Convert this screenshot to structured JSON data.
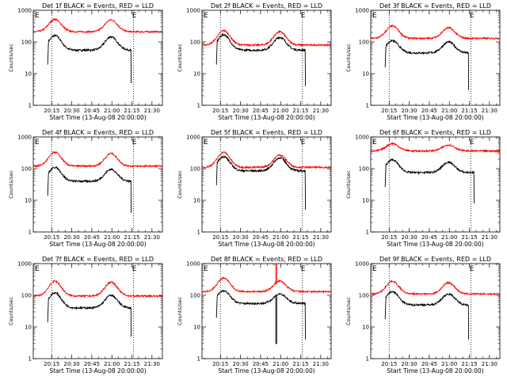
{
  "chart_data": [
    {
      "type": "line",
      "title": "Det 1f BLACK = Events, RED = LLD",
      "xlabel": "Start Time (13-Aug-08 20:00:00)",
      "ylabel": "Counts/sec",
      "yscale": "log",
      "ylim": [
        1,
        1000
      ],
      "xlim": [
        20.02,
        21.63
      ],
      "xticks": [
        "20:15",
        "20:30",
        "20:45",
        "21:00",
        "21:15",
        "21:30"
      ],
      "yticks": [
        "1",
        "10",
        "100",
        "1000"
      ],
      "markers": [
        "E",
        "E"
      ],
      "event_lines": [
        20.25,
        21.27
      ],
      "series": [
        {
          "color": "#000000",
          "start": 20.2,
          "end": 21.24,
          "base": 55,
          "peaks": [
            [
              20.29,
              160
            ],
            [
              20.99,
              145
            ]
          ],
          "end_drop": 5
        },
        {
          "color": "#ff0000",
          "start": 20.02,
          "end": 21.63,
          "base": 210,
          "peaks": [
            [
              20.29,
              520
            ],
            [
              20.99,
              500
            ]
          ],
          "end_drop": null
        }
      ]
    },
    {
      "type": "line",
      "title": "Det 2f BLACK = Events, RED = LLD",
      "xlabel": "Start Time (13-Aug-08 20:00:00)",
      "ylabel": "Counts/sec",
      "yscale": "log",
      "ylim": [
        1,
        1000
      ],
      "xlim": [
        20.02,
        21.63
      ],
      "xticks": [
        "20:15",
        "20:30",
        "20:45",
        "21:00",
        "21:15",
        "21:30"
      ],
      "yticks": [
        "1",
        "10",
        "100",
        "1000"
      ],
      "markers": [
        "E",
        "E"
      ],
      "event_lines": [
        20.25,
        21.27
      ],
      "series": [
        {
          "color": "#000000",
          "start": 20.2,
          "end": 21.31,
          "base": 55,
          "peaks": [
            [
              20.29,
              170
            ],
            [
              20.99,
              140
            ]
          ],
          "end_drop": 4
        },
        {
          "color": "#ff0000",
          "start": 20.02,
          "end": 21.63,
          "base": 80,
          "peaks": [
            [
              20.29,
              230
            ],
            [
              20.99,
              210
            ]
          ],
          "end_drop": null
        }
      ]
    },
    {
      "type": "line",
      "title": "Det 3f BLACK = Events, RED = LLD",
      "xlabel": "Start Time (13-Aug-08 20:00:00)",
      "ylabel": "Counts/sec",
      "yscale": "log",
      "ylim": [
        1,
        1000
      ],
      "xlim": [
        20.02,
        21.63
      ],
      "xticks": [
        "20:15",
        "20:30",
        "20:45",
        "21:00",
        "21:15",
        "21:30"
      ],
      "yticks": [
        "1",
        "10",
        "100",
        "1000"
      ],
      "markers": [
        "E",
        "E"
      ],
      "event_lines": [
        20.25,
        21.27
      ],
      "series": [
        {
          "color": "#000000",
          "start": 20.2,
          "end": 21.24,
          "base": 45,
          "peaks": [
            [
              20.29,
              110
            ],
            [
              20.99,
              100
            ]
          ],
          "end_drop": 3
        },
        {
          "color": "#ff0000",
          "start": 20.02,
          "end": 21.63,
          "base": 130,
          "peaks": [
            [
              20.29,
              320
            ],
            [
              20.99,
              280
            ]
          ],
          "end_drop": null
        }
      ]
    },
    {
      "type": "line",
      "title": "Det 4f BLACK = Events, RED = LLD",
      "xlabel": "Start Time (13-Aug-08 20:00:00)",
      "ylabel": "Counts/sec",
      "yscale": "log",
      "ylim": [
        1,
        1000
      ],
      "xlim": [
        20.02,
        21.63
      ],
      "xticks": [
        "20:15",
        "20:30",
        "20:45",
        "21:00",
        "21:15",
        "21:30"
      ],
      "yticks": [
        "1",
        "10",
        "100",
        "1000"
      ],
      "markers": [
        "E",
        "E"
      ],
      "event_lines": [
        20.25,
        21.27
      ],
      "series": [
        {
          "color": "#000000",
          "start": 20.2,
          "end": 21.24,
          "base": 40,
          "peaks": [
            [
              20.29,
              110
            ],
            [
              20.99,
              95
            ]
          ],
          "end_drop": 4
        },
        {
          "color": "#ff0000",
          "start": 20.02,
          "end": 21.63,
          "base": 120,
          "peaks": [
            [
              20.29,
              330
            ],
            [
              20.99,
              300
            ]
          ],
          "end_drop": null
        }
      ]
    },
    {
      "type": "line",
      "title": "Det 5f BLACK = Events, RED = LLD",
      "xlabel": "Start Time (13-Aug-08 20:00:00)",
      "ylabel": "Counts/sec",
      "yscale": "log",
      "ylim": [
        1,
        1000
      ],
      "xlim": [
        20.02,
        21.63
      ],
      "xticks": [
        "20:15",
        "20:30",
        "20:45",
        "21:00",
        "21:15",
        "21:30"
      ],
      "yticks": [
        "1",
        "10",
        "100",
        "1000"
      ],
      "markers": [
        "E",
        "E"
      ],
      "event_lines": [
        20.25,
        21.27
      ],
      "series": [
        {
          "color": "#000000",
          "start": 20.2,
          "end": 21.31,
          "base": 85,
          "peaks": [
            [
              20.29,
              240
            ],
            [
              20.99,
              220
            ]
          ],
          "end_drop": 5
        },
        {
          "color": "#ff0000",
          "start": 20.02,
          "end": 21.63,
          "base": 110,
          "peaks": [
            [
              20.29,
              330
            ],
            [
              20.99,
              270
            ]
          ],
          "end_drop": null
        }
      ]
    },
    {
      "type": "line",
      "title": "Det 6f BLACK = Events, RED = LLD",
      "xlabel": "Start Time (13-Aug-08 20:00:00)",
      "ylabel": "Counts/sec",
      "yscale": "log",
      "ylim": [
        1,
        1000
      ],
      "xlim": [
        20.02,
        21.63
      ],
      "xticks": [
        "20:15",
        "20:30",
        "20:45",
        "21:00",
        "21:15",
        "21:30"
      ],
      "yticks": [
        "1",
        "10",
        "100",
        "1000"
      ],
      "markers": [
        "E",
        "E"
      ],
      "event_lines": [
        20.25,
        21.27
      ],
      "series": [
        {
          "color": "#000000",
          "start": 20.2,
          "end": 21.31,
          "base": 75,
          "peaks": [
            [
              20.29,
              190
            ],
            [
              20.99,
              160
            ]
          ],
          "end_drop": 8
        },
        {
          "color": "#ff0000",
          "start": 20.02,
          "end": 21.63,
          "base": 360,
          "peaks": [
            [
              20.29,
              620
            ],
            [
              20.99,
              560
            ]
          ],
          "end_drop": null
        }
      ]
    },
    {
      "type": "line",
      "title": "Det 7f BLACK = Events, RED = LLD",
      "xlabel": "Start Time (13-Aug-08 20:00:00)",
      "ylabel": "Counts/sec",
      "yscale": "log",
      "ylim": [
        1,
        1000
      ],
      "xlim": [
        20.02,
        21.63
      ],
      "xticks": [
        "20:15",
        "20:30",
        "20:45",
        "21:00",
        "21:15",
        "21:30"
      ],
      "yticks": [
        "1",
        "10",
        "100",
        "1000"
      ],
      "markers": [
        "E",
        "E"
      ],
      "event_lines": [
        20.25,
        21.27
      ],
      "series": [
        {
          "color": "#000000",
          "start": 20.2,
          "end": 21.24,
          "base": 40,
          "peaks": [
            [
              20.29,
              120
            ],
            [
              20.99,
              100
            ]
          ],
          "end_drop": 5
        },
        {
          "color": "#ff0000",
          "start": 20.02,
          "end": 21.63,
          "base": 95,
          "peaks": [
            [
              20.29,
              280
            ],
            [
              20.99,
              260
            ]
          ],
          "end_drop": null
        }
      ]
    },
    {
      "type": "line",
      "title": "Det 8f BLACK = Events, RED = LLD",
      "xlabel": "Start Time (13-Aug-08 20:00:00)",
      "ylabel": "Counts/sec",
      "yscale": "log",
      "ylim": [
        1,
        1000
      ],
      "xlim": [
        20.02,
        21.63
      ],
      "xticks": [
        "20:15",
        "20:30",
        "20:45",
        "21:00",
        "21:15",
        "21:30"
      ],
      "yticks": [
        "1",
        "10",
        "100",
        "1000"
      ],
      "markers": [
        "E",
        "E"
      ],
      "event_lines": [
        20.25,
        21.27
      ],
      "series": [
        {
          "color": "#000000",
          "start": 20.2,
          "end": 21.31,
          "base": 55,
          "peaks": [
            [
              20.29,
              140
            ],
            [
              20.99,
              110
            ]
          ],
          "end_drop": 4,
          "spike": [
            20.94,
            3
          ]
        },
        {
          "color": "#ff0000",
          "start": 20.02,
          "end": 21.63,
          "base": 130,
          "peaks": [
            [
              20.29,
              350
            ],
            [
              20.99,
              280
            ]
          ],
          "end_drop": null,
          "spike": [
            20.94,
            1000
          ]
        }
      ]
    },
    {
      "type": "line",
      "title": "Det 9f BLACK = Events, RED = LLD",
      "xlabel": "Start Time (13-Aug-08 20:00:00)",
      "ylabel": "Counts/sec",
      "yscale": "log",
      "ylim": [
        1,
        1000
      ],
      "xlim": [
        20.02,
        21.63
      ],
      "xticks": [
        "20:15",
        "20:30",
        "20:45",
        "21:00",
        "21:15",
        "21:30"
      ],
      "yticks": [
        "1",
        "10",
        "100",
        "1000"
      ],
      "markers": [
        "E",
        "E"
      ],
      "event_lines": [
        20.25,
        21.27
      ],
      "series": [
        {
          "color": "#000000",
          "start": 20.2,
          "end": 21.24,
          "base": 50,
          "peaks": [
            [
              20.29,
              130
            ],
            [
              20.99,
              110
            ]
          ],
          "end_drop": 4
        },
        {
          "color": "#ff0000",
          "start": 20.02,
          "end": 21.63,
          "base": 110,
          "peaks": [
            [
              20.29,
              280
            ],
            [
              20.99,
              250
            ]
          ],
          "end_drop": null
        }
      ]
    }
  ]
}
